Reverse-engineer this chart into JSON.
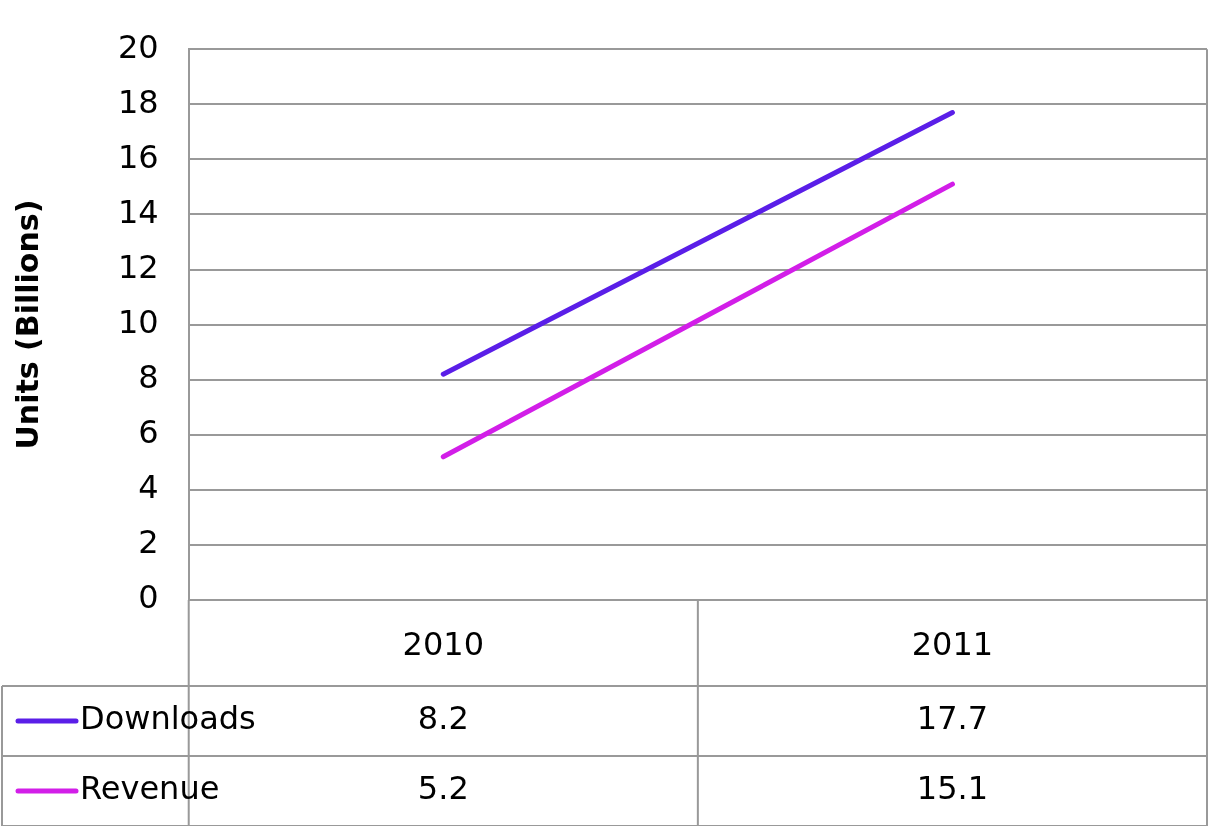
{
  "chart_data": {
    "type": "line",
    "ylabel": "Units (Billions)",
    "categories": [
      "2010",
      "2011"
    ],
    "series": [
      {
        "name": "Downloads",
        "color": "#5a1ee8",
        "values": [
          8.2,
          17.7
        ]
      },
      {
        "name": "Revenue",
        "color": "#d21ee8",
        "values": [
          5.2,
          15.1
        ]
      }
    ],
    "ylim": [
      0,
      20
    ],
    "yticks": [
      0,
      2,
      4,
      6,
      8,
      10,
      12,
      14,
      16,
      18,
      20
    ],
    "grid": "y",
    "legend": "bottom",
    "data_labels": true,
    "marker": "none",
    "line_style": "solid"
  }
}
